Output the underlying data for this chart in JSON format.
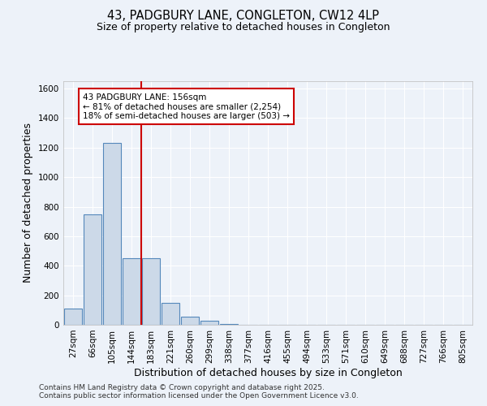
{
  "title1": "43, PADGBURY LANE, CONGLETON, CW12 4LP",
  "title2": "Size of property relative to detached houses in Congleton",
  "xlabel": "Distribution of detached houses by size in Congleton",
  "ylabel": "Number of detached properties",
  "categories": [
    "27sqm",
    "66sqm",
    "105sqm",
    "144sqm",
    "183sqm",
    "221sqm",
    "260sqm",
    "299sqm",
    "338sqm",
    "377sqm",
    "416sqm",
    "455sqm",
    "494sqm",
    "533sqm",
    "571sqm",
    "610sqm",
    "649sqm",
    "688sqm",
    "727sqm",
    "766sqm",
    "805sqm"
  ],
  "values": [
    110,
    750,
    1230,
    450,
    450,
    150,
    55,
    30,
    8,
    0,
    0,
    0,
    0,
    0,
    0,
    0,
    0,
    0,
    0,
    0,
    0
  ],
  "bar_color": "#ccd9e8",
  "bar_edge_color": "#5588bb",
  "vline_color": "#cc0000",
  "annotation_text": "43 PADGBURY LANE: 156sqm\n← 81% of detached houses are smaller (2,254)\n18% of semi-detached houses are larger (503) →",
  "annotation_box_color": "#cc0000",
  "ylim": [
    0,
    1650
  ],
  "yticks": [
    0,
    200,
    400,
    600,
    800,
    1000,
    1200,
    1400,
    1600
  ],
  "bg_color": "#edf2f9",
  "plot_bg_color": "#edf2f9",
  "grid_color": "#ffffff",
  "footer": "Contains HM Land Registry data © Crown copyright and database right 2025.\nContains public sector information licensed under the Open Government Licence v3.0.",
  "title1_fontsize": 10.5,
  "title2_fontsize": 9,
  "tick_fontsize": 7.5,
  "label_fontsize": 9,
  "footer_fontsize": 6.5,
  "ann_fontsize": 7.5
}
